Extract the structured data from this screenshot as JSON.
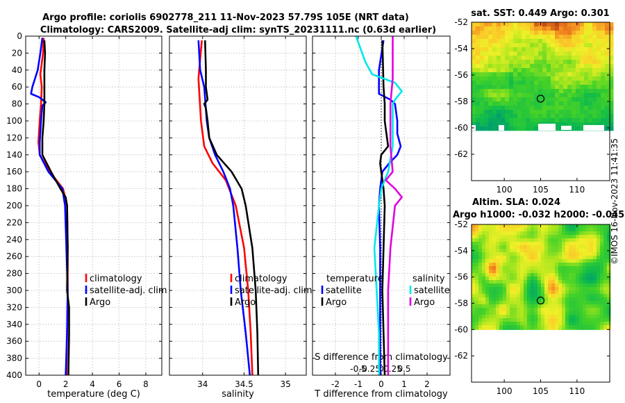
{
  "title": {
    "line1": "Argo profile: coriolis 6902778_211 11-Nov-2023 57.79S 105E (NRT data)",
    "line2": "Climatology: CARS2009. Satellite-adj clim: synTS_20231111.nc (0.63d earlier)"
  },
  "watermark": "©IMOS 16-Nov-2023 11:41:35",
  "colors": {
    "clim": "#ff0000",
    "sat": "#0000ff",
    "argo": "#000000",
    "sal_sat": "#00e8e8",
    "sal_argo": "#e000e0"
  },
  "chart_data": [
    {
      "id": "temperature",
      "type": "line",
      "xlabel": "temperature (deg C)",
      "xlim": [
        -1,
        9.2
      ],
      "xticks": [
        0,
        2,
        4,
        6,
        8
      ],
      "xtick_labels": [
        "0",
        "2",
        "4",
        "6",
        "8"
      ],
      "ylim": [
        0,
        400
      ],
      "yticks": [
        0,
        20,
        40,
        60,
        80,
        100,
        120,
        140,
        160,
        180,
        200,
        220,
        240,
        260,
        280,
        300,
        320,
        340,
        360,
        380,
        400
      ],
      "ytick_labels": [
        "0",
        "20",
        "40",
        "60",
        "80",
        "100",
        "120",
        "140",
        "160",
        "180",
        "200",
        "220",
        "240",
        "260",
        "280",
        "300",
        "320",
        "340",
        "360",
        "380",
        "400"
      ],
      "grid": true,
      "legend": [
        "climatology",
        "satellite-adj. clim",
        "Argo"
      ],
      "series": [
        {
          "name": "climatology",
          "color": "#ff0000",
          "depth": [
            2,
            20,
            45,
            60,
            80,
            100,
            125,
            140,
            160,
            180,
            200,
            250,
            300,
            350,
            400
          ],
          "values": [
            0.35,
            0.3,
            0.1,
            0.2,
            0.15,
            0.05,
            -0.05,
            0.05,
            0.8,
            1.8,
            2.1,
            2.15,
            2.15,
            2.1,
            2.05
          ]
        },
        {
          "name": "satellite-adj. clim",
          "color": "#0000ff",
          "depth": [
            2,
            20,
            40,
            60,
            68,
            72,
            78,
            82,
            100,
            125,
            140,
            160,
            180,
            200,
            250,
            300,
            350,
            400
          ],
          "values": [
            0.25,
            0.1,
            -0.1,
            -0.5,
            -0.6,
            0.0,
            0.5,
            0.25,
            0.15,
            0.05,
            0.05,
            0.7,
            1.75,
            1.95,
            2.05,
            2.15,
            2.1,
            2.0
          ]
        },
        {
          "name": "Argo",
          "color": "#000000",
          "depth": [
            5,
            20,
            40,
            60,
            80,
            100,
            120,
            140,
            160,
            180,
            190,
            200,
            250,
            300,
            320,
            350,
            400
          ],
          "values": [
            0.4,
            0.45,
            0.4,
            0.4,
            0.4,
            0.35,
            0.25,
            0.25,
            0.9,
            1.6,
            2.0,
            2.1,
            2.15,
            2.1,
            2.25,
            2.25,
            2.2
          ]
        }
      ]
    },
    {
      "id": "salinity",
      "type": "line",
      "xlabel": "salinity",
      "xlim": [
        33.6,
        35.25
      ],
      "xticks": [
        34,
        34.5,
        35
      ],
      "xtick_labels": [
        "34",
        "34.5",
        "35"
      ],
      "ylim": [
        0,
        400
      ],
      "grid": true,
      "legend": [
        "climatology",
        "satellite-adj. clim",
        "Argo"
      ],
      "series": [
        {
          "name": "climatology",
          "color": "#ff0000",
          "depth": [
            5,
            50,
            100,
            130,
            150,
            170,
            200,
            250,
            300,
            350,
            400
          ],
          "values": [
            33.99,
            33.95,
            33.98,
            34.02,
            34.12,
            34.28,
            34.4,
            34.5,
            34.55,
            34.58,
            34.6
          ]
        },
        {
          "name": "satellite-adj. clim",
          "color": "#0000ff",
          "depth": [
            5,
            40,
            60,
            100,
            120,
            140,
            160,
            180,
            200,
            250,
            300,
            350,
            400
          ],
          "values": [
            33.95,
            33.97,
            34.02,
            34.05,
            34.08,
            34.15,
            34.25,
            34.33,
            34.37,
            34.42,
            34.46,
            34.52,
            34.57
          ]
        },
        {
          "name": "Argo",
          "color": "#000000",
          "depth": [
            5,
            40,
            60,
            75,
            80,
            85,
            100,
            120,
            140,
            160,
            180,
            200,
            250,
            300,
            350,
            400
          ],
          "values": [
            34.03,
            34.04,
            34.04,
            34.06,
            34.02,
            34.04,
            34.06,
            34.08,
            34.17,
            34.35,
            34.47,
            34.52,
            34.6,
            34.64,
            34.66,
            34.67
          ]
        }
      ]
    },
    {
      "id": "difference",
      "type": "line",
      "xlabel": "T difference from climatology",
      "xlabel_top": "S difference from climatology",
      "xlim": [
        -3,
        3
      ],
      "xticks": [
        -2,
        -1,
        0,
        1,
        2
      ],
      "xtick_labels": [
        "-2",
        "-1",
        "0",
        "1",
        "2"
      ],
      "sticks": [
        -0.5,
        -0.25,
        0,
        0.25,
        0.5
      ],
      "stick_labels": [
        "-0.5",
        "-0.25",
        "0",
        "0.25",
        "0.5"
      ],
      "ylim": [
        0,
        400
      ],
      "grid": true,
      "legend_t": {
        "header": "temperature",
        "items": [
          "satellite",
          "Argo"
        ]
      },
      "legend_s": {
        "header": "salinity",
        "items": [
          "satellite",
          "Argo"
        ]
      },
      "series": [
        {
          "name": "temperature satellite",
          "color": "#0000ff",
          "depth": [
            5,
            40,
            60,
            68,
            75,
            80,
            100,
            115,
            130,
            140,
            150,
            160,
            180,
            200,
            250,
            300,
            350,
            400
          ],
          "values": [
            0.1,
            -0.1,
            -0.1,
            -0.1,
            0.4,
            0.6,
            0.7,
            0.7,
            0.85,
            0.7,
            0.35,
            0.05,
            -0.05,
            -0.1,
            -0.05,
            -0.05,
            -0.05,
            -0.05
          ]
        },
        {
          "name": "temperature Argo",
          "color": "#000000",
          "depth": [
            5,
            60,
            80,
            100,
            130,
            140,
            150,
            160,
            180,
            200,
            250,
            300,
            350,
            400
          ],
          "values": [
            0.05,
            0.1,
            0.15,
            0.15,
            0.3,
            0.0,
            -0.05,
            0.0,
            0.1,
            0.15,
            0.1,
            0.05,
            0.1,
            0.15
          ]
        },
        {
          "name": "salinity satellite",
          "color": "#00e8e8",
          "depth": [
            0,
            15,
            30,
            45,
            55,
            65,
            75,
            80,
            100,
            130,
            160,
            180,
            200,
            250,
            300,
            350,
            400
          ],
          "values": [
            -0.55,
            -0.45,
            -0.35,
            -0.2,
            0.3,
            0.45,
            0.3,
            0.25,
            0.25,
            0.25,
            0.15,
            0.0,
            -0.05,
            -0.15,
            -0.1,
            -0.05,
            -0.05
          ]
        },
        {
          "name": "salinity Argo",
          "color": "#e000e0",
          "depth": [
            0,
            50,
            80,
            100,
            130,
            160,
            170,
            180,
            190,
            200,
            250,
            300,
            350,
            400
          ],
          "values": [
            0.25,
            0.25,
            0.2,
            0.2,
            0.2,
            0.25,
            0.1,
            0.3,
            0.45,
            0.3,
            0.2,
            0.15,
            0.15,
            0.15
          ]
        }
      ]
    },
    {
      "id": "sst_map",
      "type": "heatmap",
      "title": "sat. SST: 0.449 Argo: 0.301",
      "xlim": [
        95.5,
        114.5
      ],
      "ylim": [
        -64,
        -52
      ],
      "xticks": [
        100,
        105,
        110
      ],
      "xtick_labels": [
        "100",
        "105",
        "110"
      ],
      "yticks": [
        -52,
        -54,
        -56,
        -58,
        -60,
        -62
      ],
      "ytick_labels": [
        "-52",
        "-54",
        "-56",
        "-58",
        "-60",
        "-62"
      ],
      "marker": [
        105,
        -57.79
      ],
      "data_lat_min": -60.2
    },
    {
      "id": "sla_map",
      "type": "heatmap",
      "title": "Altim. SLA: 0.024",
      "subtitle": "Argo h1000: -0.032 h2000: -0.045",
      "xlim": [
        95.5,
        114.5
      ],
      "ylim": [
        -64,
        -52
      ],
      "xticks": [
        100,
        105,
        110
      ],
      "xtick_labels": [
        "100",
        "105",
        "110"
      ],
      "yticks": [
        -52,
        -54,
        -56,
        -58,
        -60,
        -62
      ],
      "ytick_labels": [
        "-52",
        "-54",
        "-56",
        "-58",
        "-60",
        "-62"
      ],
      "marker": [
        105,
        -57.79
      ],
      "data_lat_min": -60
    }
  ]
}
